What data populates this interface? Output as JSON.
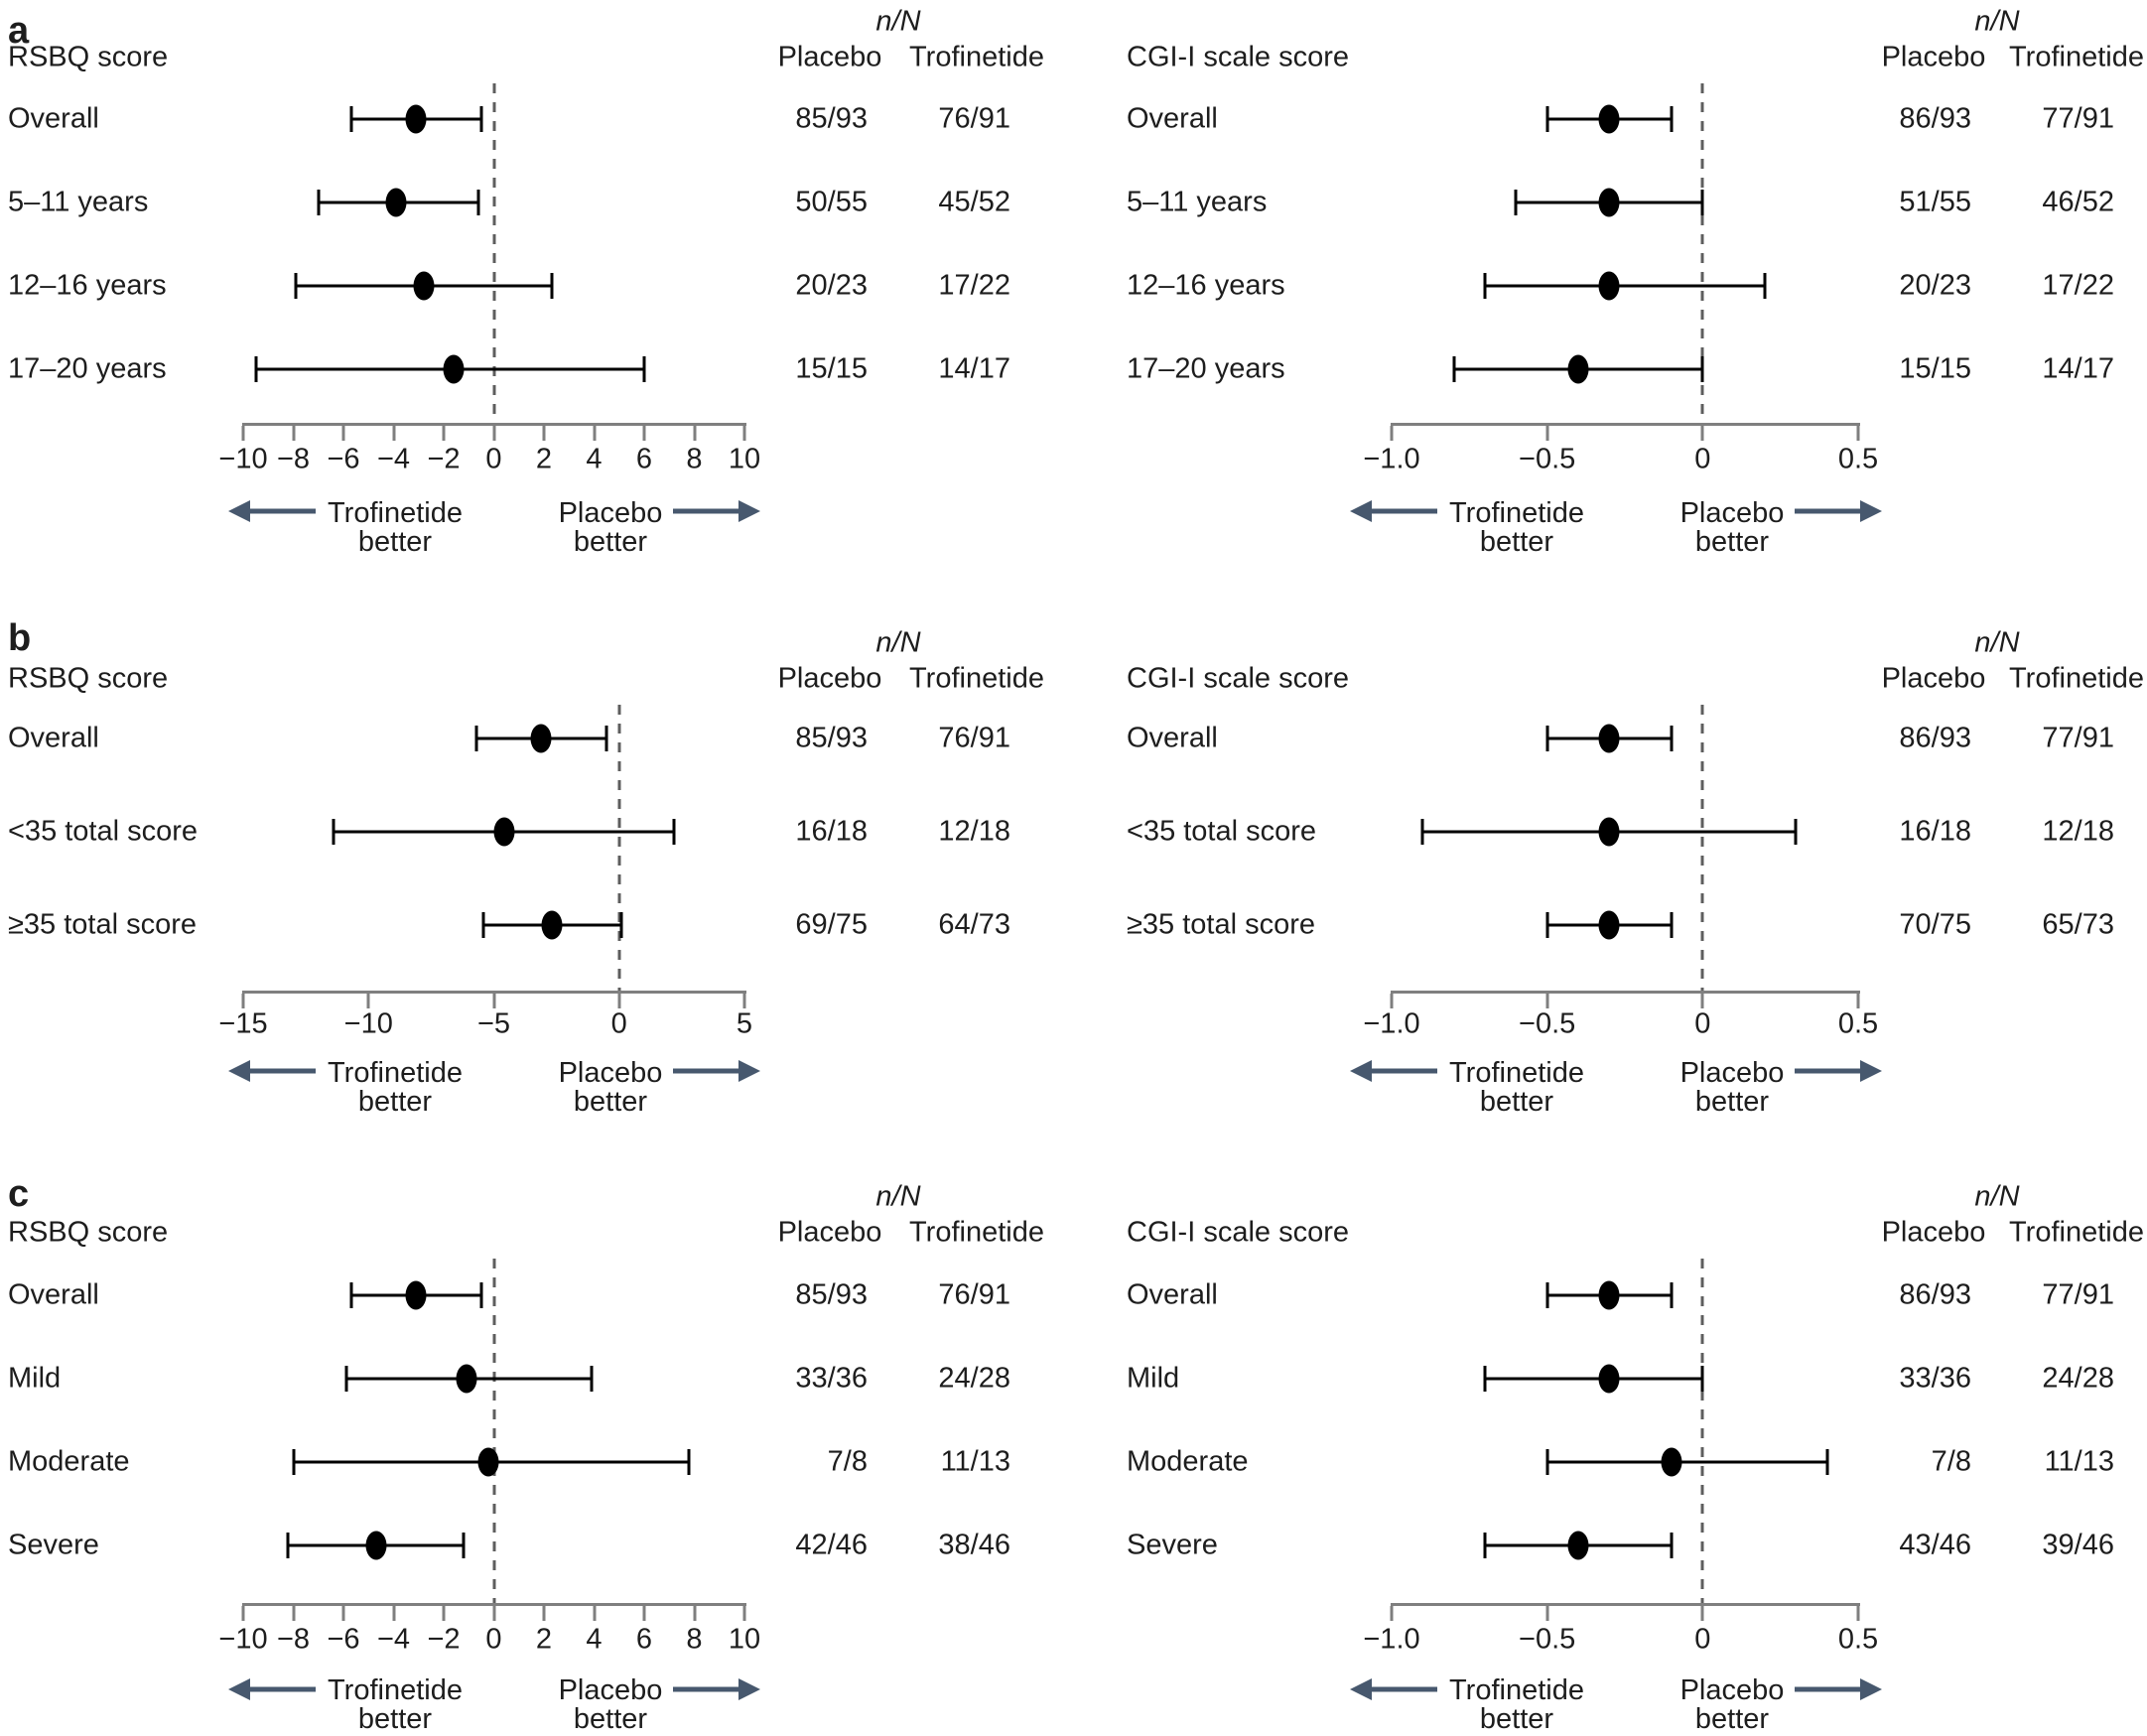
{
  "figure_type": "forest-plot-grid",
  "shared": {
    "nN_header": "n/N",
    "placebo_header": "Placebo",
    "trofinetide_header": "Trofinetide",
    "footer_left_line1": "Trofinetide",
    "footer_left_line2": "better",
    "footer_right_line1": "Placebo",
    "footer_right_line2": "better"
  },
  "colors": {
    "text": "#1d1d1d",
    "axis": "#7f7f7f",
    "dashed_line": "#5e5e5e",
    "marker": "#000000",
    "arrow": "#47586e",
    "background": "#ffffff"
  },
  "chart_data": [
    {
      "type": "scatter",
      "variant": "forest-plot",
      "panel_letter": "a",
      "panel_row": "a",
      "side": "left",
      "title": "RSBQ score",
      "x_axis": {
        "range": [
          -10,
          10
        ],
        "tick_values": [
          -10,
          -8,
          -6,
          -4,
          -2,
          0,
          2,
          4,
          6,
          8,
          10
        ],
        "tick_labels": [
          "−10",
          "−8",
          "−6",
          "−4",
          "−2",
          "0",
          "2",
          "4",
          "6",
          "8",
          "10"
        ],
        "zero_line": 0
      },
      "legend_left": "Trofinetide better",
      "legend_right": "Placebo better",
      "rows": [
        {
          "label": "Overall",
          "placebo_nN": "85/93",
          "trofinetide_nN": "76/91",
          "estimate": -3.1,
          "ci_low": -5.7,
          "ci_high": -0.5
        },
        {
          "label": "5–11 years",
          "placebo_nN": "50/55",
          "trofinetide_nN": "45/52",
          "estimate": -3.9,
          "ci_low": -7.0,
          "ci_high": -0.6
        },
        {
          "label": "12–16 years",
          "placebo_nN": "20/23",
          "trofinetide_nN": "17/22",
          "estimate": -2.8,
          "ci_low": -7.9,
          "ci_high": 2.3
        },
        {
          "label": "17–20 years",
          "placebo_nN": "15/15",
          "trofinetide_nN": "14/17",
          "estimate": -1.6,
          "ci_low": -9.5,
          "ci_high": 6.0
        }
      ]
    },
    {
      "type": "scatter",
      "variant": "forest-plot",
      "panel_letter": "",
      "panel_row": "a",
      "side": "right",
      "title": "CGI-I scale score",
      "x_axis": {
        "range": [
          -1.0,
          0.5
        ],
        "tick_values": [
          -1.0,
          -0.5,
          0,
          0.5
        ],
        "tick_labels": [
          "−1.0",
          "−0.5",
          "0",
          "0.5"
        ],
        "zero_line": 0
      },
      "legend_left": "Trofinetide better",
      "legend_right": "Placebo better",
      "rows": [
        {
          "label": "Overall",
          "placebo_nN": "86/93",
          "trofinetide_nN": "77/91",
          "estimate": -0.3,
          "ci_low": -0.5,
          "ci_high": -0.1
        },
        {
          "label": "5–11 years",
          "placebo_nN": "51/55",
          "trofinetide_nN": "46/52",
          "estimate": -0.3,
          "ci_low": -0.6,
          "ci_high": 0.0
        },
        {
          "label": "12–16 years",
          "placebo_nN": "20/23",
          "trofinetide_nN": "17/22",
          "estimate": -0.3,
          "ci_low": -0.7,
          "ci_high": 0.2
        },
        {
          "label": "17–20 years",
          "placebo_nN": "15/15",
          "trofinetide_nN": "14/17",
          "estimate": -0.4,
          "ci_low": -0.8,
          "ci_high": 0.0
        }
      ]
    },
    {
      "type": "scatter",
      "variant": "forest-plot",
      "panel_letter": "b",
      "panel_row": "b",
      "side": "left",
      "title": "RSBQ score",
      "x_axis": {
        "range": [
          -15,
          5
        ],
        "tick_values": [
          -15,
          -10,
          -5,
          0,
          5
        ],
        "tick_labels": [
          "−15",
          "−10",
          "−5",
          "0",
          "5"
        ],
        "zero_line": 0
      },
      "legend_left": "Trofinetide better",
      "legend_right": "Placebo better",
      "rows": [
        {
          "label": "Overall",
          "placebo_nN": "85/93",
          "trofinetide_nN": "76/91",
          "estimate": -3.1,
          "ci_low": -5.7,
          "ci_high": -0.5
        },
        {
          "label": "<35 total score",
          "placebo_nN": "16/18",
          "trofinetide_nN": "12/18",
          "estimate": -4.6,
          "ci_low": -11.4,
          "ci_high": 2.2
        },
        {
          "label": "≥35 total score",
          "placebo_nN": "69/75",
          "trofinetide_nN": "64/73",
          "estimate": -2.7,
          "ci_low": -5.4,
          "ci_high": 0.1
        }
      ]
    },
    {
      "type": "scatter",
      "variant": "forest-plot",
      "panel_letter": "",
      "panel_row": "b",
      "side": "right",
      "title": "CGI-I scale score",
      "x_axis": {
        "range": [
          -1.0,
          0.5
        ],
        "tick_values": [
          -1.0,
          -0.5,
          0,
          0.5
        ],
        "tick_labels": [
          "−1.0",
          "−0.5",
          "0",
          "0.5"
        ],
        "zero_line": 0
      },
      "legend_left": "Trofinetide better",
      "legend_right": "Placebo better",
      "rows": [
        {
          "label": "Overall",
          "placebo_nN": "86/93",
          "trofinetide_nN": "77/91",
          "estimate": -0.3,
          "ci_low": -0.5,
          "ci_high": -0.1
        },
        {
          "label": "<35 total score",
          "placebo_nN": "16/18",
          "trofinetide_nN": "12/18",
          "estimate": -0.3,
          "ci_low": -0.9,
          "ci_high": 0.3
        },
        {
          "label": "≥35 total score",
          "placebo_nN": "70/75",
          "trofinetide_nN": "65/73",
          "estimate": -0.3,
          "ci_low": -0.5,
          "ci_high": -0.1
        }
      ]
    },
    {
      "type": "scatter",
      "variant": "forest-plot",
      "panel_letter": "c",
      "panel_row": "c",
      "side": "left",
      "title": "RSBQ score",
      "x_axis": {
        "range": [
          -10,
          10
        ],
        "tick_values": [
          -10,
          -8,
          -6,
          -4,
          -2,
          0,
          2,
          4,
          6,
          8,
          10
        ],
        "tick_labels": [
          "−10",
          "−8",
          "−6",
          "−4",
          "−2",
          "0",
          "2",
          "4",
          "6",
          "8",
          "10"
        ],
        "zero_line": 0
      },
      "legend_left": "Trofinetide better",
      "legend_right": "Placebo better",
      "rows": [
        {
          "label": "Overall",
          "placebo_nN": "85/93",
          "trofinetide_nN": "76/91",
          "estimate": -3.1,
          "ci_low": -5.7,
          "ci_high": -0.5
        },
        {
          "label": "Mild",
          "placebo_nN": "33/36",
          "trofinetide_nN": "24/28",
          "estimate": -1.1,
          "ci_low": -5.9,
          "ci_high": 3.9
        },
        {
          "label": "Moderate",
          "placebo_nN": "7/8",
          "trofinetide_nN": "11/13",
          "estimate": -0.2,
          "ci_low": -8.0,
          "ci_high": 7.8
        },
        {
          "label": "Severe",
          "placebo_nN": "42/46",
          "trofinetide_nN": "38/46",
          "estimate": -4.7,
          "ci_low": -8.2,
          "ci_high": -1.2
        }
      ]
    },
    {
      "type": "scatter",
      "variant": "forest-plot",
      "panel_letter": "",
      "panel_row": "c",
      "side": "right",
      "title": "CGI-I scale score",
      "x_axis": {
        "range": [
          -1.0,
          0.5
        ],
        "tick_values": [
          -1.0,
          -0.5,
          0,
          0.5
        ],
        "tick_labels": [
          "−1.0",
          "−0.5",
          "0",
          "0.5"
        ],
        "zero_line": 0
      },
      "legend_left": "Trofinetide better",
      "legend_right": "Placebo better",
      "rows": [
        {
          "label": "Overall",
          "placebo_nN": "86/93",
          "trofinetide_nN": "77/91",
          "estimate": -0.3,
          "ci_low": -0.5,
          "ci_high": -0.1
        },
        {
          "label": "Mild",
          "placebo_nN": "33/36",
          "trofinetide_nN": "24/28",
          "estimate": -0.3,
          "ci_low": -0.7,
          "ci_high": 0.0
        },
        {
          "label": "Moderate",
          "placebo_nN": "7/8",
          "trofinetide_nN": "11/13",
          "estimate": -0.1,
          "ci_low": -0.5,
          "ci_high": 0.4
        },
        {
          "label": "Severe",
          "placebo_nN": "43/46",
          "trofinetide_nN": "39/46",
          "estimate": -0.4,
          "ci_low": -0.7,
          "ci_high": -0.1
        }
      ]
    }
  ]
}
